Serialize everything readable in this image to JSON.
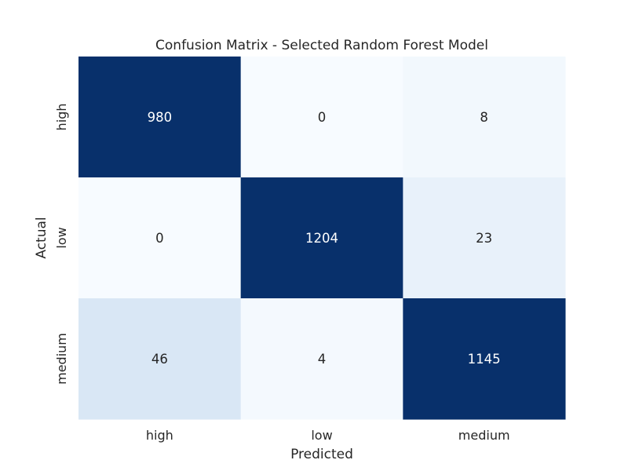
{
  "chart_data": {
    "type": "heatmap",
    "title": "Confusion Matrix - Selected Random Forest Model",
    "xlabel": "Predicted",
    "ylabel": "Actual",
    "x_categories": [
      "high",
      "low",
      "medium"
    ],
    "y_categories": [
      "high",
      "low",
      "medium"
    ],
    "values": [
      [
        980,
        0,
        8
      ],
      [
        0,
        1204,
        23
      ],
      [
        46,
        4,
        1145
      ]
    ],
    "colormap": "Blues",
    "color_range": [
      0,
      300
    ],
    "colorbar": false,
    "grid": false
  }
}
